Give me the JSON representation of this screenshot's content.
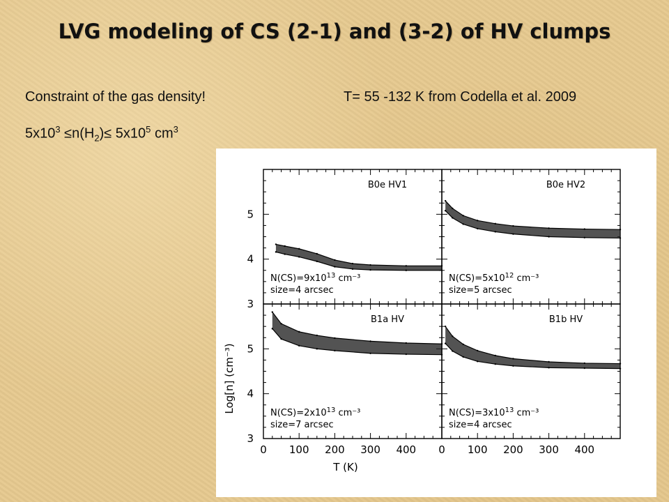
{
  "slide": {
    "title": "LVG modeling of CS (2-1) and (3-2) of HV clumps",
    "line1": "Constraint of the gas density!",
    "line2": "T= 55 -132 K from Codella et al. 2009",
    "density": {
      "lead": "5x10",
      "exp1": "3",
      "mid1": " ≤n(H",
      "sub": "2",
      "mid2": ")≤ 5x10",
      "exp2": "5",
      "tail": " cm",
      "exp3": "3"
    }
  },
  "chart_data": {
    "type": "line",
    "xlabel": "T (K)",
    "ylabel": "Log[n] (cm⁻³)",
    "xlim": [
      0,
      500
    ],
    "ylim": [
      3,
      6
    ],
    "x_ticks": [
      0,
      100,
      200,
      300,
      400
    ],
    "y_ticks": [
      3,
      4,
      5
    ],
    "panels": [
      {
        "title": "B0e HV1",
        "annotation_line1": "N(CS)=9x10",
        "annotation_exp": "13",
        "annotation_unit": "cm⁻³",
        "annotation_line2": "size=4 arcsec",
        "series": [
          {
            "x": [
              35,
              60,
              100,
              150,
              200,
              250,
              300,
              400,
              500
            ],
            "y": [
              4.33,
              4.29,
              4.23,
              4.12,
              3.98,
              3.9,
              3.87,
              3.85,
              3.85
            ]
          },
          {
            "x": [
              35,
              60,
              100,
              150,
              200,
              250,
              300,
              400,
              500
            ],
            "y": [
              4.16,
              4.11,
              4.05,
              3.95,
              3.83,
              3.78,
              3.76,
              3.75,
              3.75
            ]
          }
        ]
      },
      {
        "title": "B0e HV2",
        "annotation_line1": "N(CS)=5x10",
        "annotation_exp": "12",
        "annotation_unit": "cm⁻³",
        "annotation_line2": "size=5 arcsec",
        "series": [
          {
            "x": [
              10,
              30,
              60,
              100,
              150,
              200,
              300,
              400,
              500
            ],
            "y": [
              5.3,
              5.13,
              4.97,
              4.86,
              4.79,
              4.74,
              4.69,
              4.67,
              4.66
            ]
          },
          {
            "x": [
              10,
              30,
              60,
              100,
              150,
              200,
              300,
              400,
              500
            ],
            "y": [
              5.08,
              4.92,
              4.78,
              4.68,
              4.61,
              4.56,
              4.5,
              4.48,
              4.47
            ]
          }
        ]
      },
      {
        "title": "B1a HV",
        "annotation_line1": "N(CS)=2x10",
        "annotation_exp": "13",
        "annotation_unit": "cm⁻³",
        "annotation_line2": "size=7 arcsec",
        "series": [
          {
            "x": [
              25,
              50,
              100,
              150,
              200,
              300,
              400,
              500
            ],
            "y": [
              5.82,
              5.56,
              5.38,
              5.3,
              5.24,
              5.17,
              5.13,
              5.11
            ]
          },
          {
            "x": [
              25,
              50,
              100,
              150,
              200,
              300,
              400,
              500
            ],
            "y": [
              5.45,
              5.22,
              5.07,
              5.0,
              4.96,
              4.9,
              4.88,
              4.87
            ]
          }
        ]
      },
      {
        "title": "B1b HV",
        "annotation_line1": "N(CS)=3x10",
        "annotation_exp": "13",
        "annotation_unit": "cm⁻³",
        "annotation_line2": "size=4 arcsec",
        "series": [
          {
            "x": [
              10,
              30,
              60,
              100,
              150,
              200,
              300,
              400,
              500
            ],
            "y": [
              5.5,
              5.28,
              5.1,
              4.96,
              4.85,
              4.78,
              4.71,
              4.68,
              4.67
            ]
          },
          {
            "x": [
              10,
              30,
              60,
              100,
              150,
              200,
              300,
              400,
              500
            ],
            "y": [
              5.12,
              4.95,
              4.82,
              4.72,
              4.66,
              4.62,
              4.58,
              4.57,
              4.56
            ]
          }
        ]
      }
    ]
  }
}
